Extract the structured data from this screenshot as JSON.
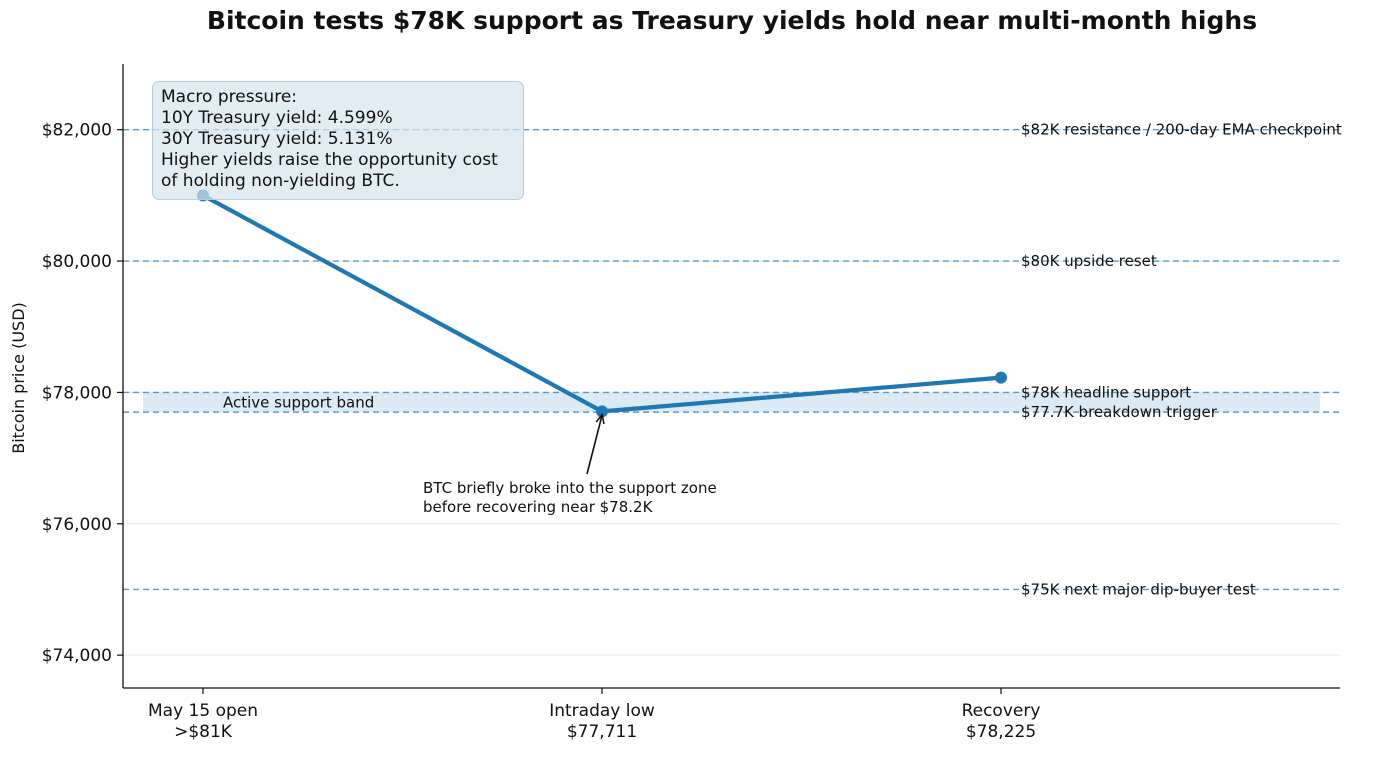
{
  "chart_data": {
    "type": "line",
    "title": "Bitcoin tests $78K support as Treasury yields hold near multi-month highs",
    "ylabel": "Bitcoin price (USD)",
    "xlabel": "",
    "ylim": [
      73500,
      83000
    ],
    "yticks": [
      74000,
      76000,
      78000,
      80000,
      82000
    ],
    "ytick_labels": [
      "$74,000",
      "$76,000",
      "$78,000",
      "$80,000",
      "$82,000"
    ],
    "categories": [
      [
        "May 15 open",
        ">$81K"
      ],
      [
        "Intraday low",
        "$77,711"
      ],
      [
        "Recovery",
        "$78,225"
      ]
    ],
    "series": [
      {
        "name": "",
        "values": [
          81000,
          77711,
          78225
        ],
        "color": "#1f77b4"
      }
    ],
    "reference_lines": [
      {
        "y": 82000,
        "label": "$82K resistance / 200-day EMA checkpoint"
      },
      {
        "y": 80000,
        "label": "$80K upside reset"
      },
      {
        "y": 78000,
        "label": "$78K headline support"
      },
      {
        "y": 77700,
        "label": "$77.7K breakdown trigger"
      },
      {
        "y": 75000,
        "label": "$75K next major dip-buyer test"
      }
    ],
    "band": {
      "y0": 77700,
      "y1": 78000,
      "label": "Active support band",
      "color": "#d6e6f3"
    },
    "annotation": {
      "lines": [
        "BTC briefly broke into the support zone",
        "before recovering near $78.2K"
      ],
      "target_index": 1
    },
    "macro_box": {
      "lines": [
        "Macro pressure:",
        "10Y Treasury yield: 4.599%",
        "30Y Treasury yield: 5.131%",
        "Higher yields raise the opportunity cost",
        "of holding non-yielding BTC."
      ]
    },
    "grid": "y-light",
    "reference_line_color": "#5b9cc7"
  }
}
